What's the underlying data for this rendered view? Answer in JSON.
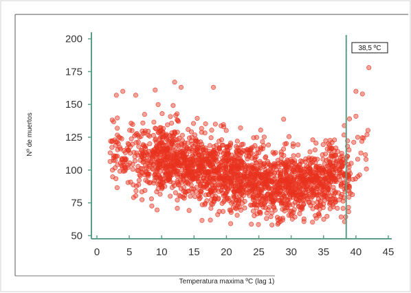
{
  "chart_data": {
    "type": "scatter",
    "title": "",
    "xlabel": "Temperatura maxima ºC (lag 1)",
    "ylabel": "Nº de muertos",
    "xlim": [
      0,
      45
    ],
    "ylim": [
      45,
      205
    ],
    "x_ticks": [
      0,
      5,
      10,
      15,
      20,
      25,
      30,
      35,
      40,
      45
    ],
    "y_ticks": [
      50,
      75,
      100,
      125,
      150,
      175,
      200
    ],
    "grid": false,
    "legend": "none",
    "colors": {
      "points": "#e8321e",
      "axis": "#5a9e86",
      "threshold": "#5a9e86"
    },
    "annotations": [
      {
        "type": "vertical-line",
        "x": 38.5,
        "label": "38,5 ºC"
      }
    ],
    "point_count": 2200,
    "distribution": {
      "description": "dense U-shaped cloud of daily deaths vs lagged max temperature",
      "x_range": [
        2,
        42
      ],
      "center_points": [
        [
          2,
          112
        ],
        [
          5,
          112
        ],
        [
          8,
          110
        ],
        [
          10,
          108
        ],
        [
          12,
          106
        ],
        [
          15,
          103
        ],
        [
          18,
          100
        ],
        [
          20,
          98
        ],
        [
          22,
          95
        ],
        [
          25,
          92
        ],
        [
          28,
          90
        ],
        [
          30,
          89
        ],
        [
          32,
          89
        ],
        [
          35,
          92
        ],
        [
          37,
          95
        ],
        [
          39,
          100
        ],
        [
          42,
          115
        ]
      ],
      "spread_sd": 13,
      "outliers": [
        [
          3,
          157
        ],
        [
          4,
          160
        ],
        [
          6,
          157
        ],
        [
          9,
          161
        ],
        [
          12,
          167
        ],
        [
          13,
          163
        ],
        [
          18,
          163
        ],
        [
          40,
          160
        ],
        [
          41,
          158
        ],
        [
          42,
          178
        ],
        [
          39,
          139
        ],
        [
          40,
          141
        ]
      ]
    }
  }
}
